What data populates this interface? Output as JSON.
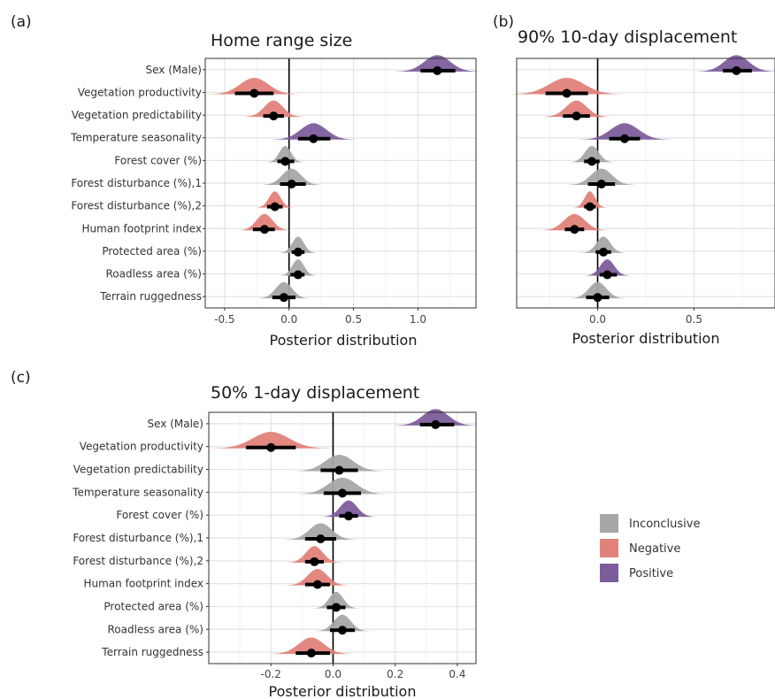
{
  "legend": [
    {
      "label": "Inconclusive",
      "color": "#A6A6A6"
    },
    {
      "label": "Negative",
      "color": "#E0827A"
    },
    {
      "label": "Positive",
      "color": "#7D5C9C"
    }
  ],
  "chart_data": [
    {
      "type": "scatter",
      "panel": "(a)",
      "title": "Home range size",
      "xlabel": "Posterior distribution",
      "xlim": [
        -0.65,
        1.45
      ],
      "xticks": [
        -0.5,
        0.0,
        0.5,
        1.0
      ],
      "xtick_labels": [
        "-0.5",
        "0.0",
        "0.5",
        "1.0"
      ],
      "grid": true,
      "categories": [
        "Sex (Male)",
        "Vegetation productivity",
        "Vegetation predictability",
        "Temperature seasonality",
        "Forest cover (%)",
        "Forest disturbance (%),1",
        "Forest disturbance (%),2",
        "Human footprint index",
        "Protected area (%)",
        "Roadless area (%)",
        "Terrain ruggedness"
      ],
      "estimates": [
        1.15,
        -0.27,
        -0.12,
        0.19,
        -0.03,
        0.02,
        -0.11,
        -0.19,
        0.07,
        0.07,
        -0.04
      ],
      "interval_low": [
        1.02,
        -0.42,
        -0.2,
        0.07,
        -0.09,
        -0.07,
        -0.17,
        -0.28,
        0.02,
        0.01,
        -0.13
      ],
      "interval_high": [
        1.29,
        -0.12,
        -0.04,
        0.32,
        0.04,
        0.13,
        -0.05,
        -0.11,
        0.12,
        0.12,
        0.05
      ],
      "spread": [
        0.22,
        0.24,
        0.16,
        0.22,
        0.1,
        0.16,
        0.1,
        0.14,
        0.1,
        0.1,
        0.14
      ],
      "classes": [
        "Positive",
        "Negative",
        "Negative",
        "Positive",
        "Inconclusive",
        "Inconclusive",
        "Negative",
        "Negative",
        "Inconclusive",
        "Inconclusive",
        "Inconclusive"
      ]
    },
    {
      "type": "scatter",
      "panel": "(b)",
      "title": "90% 10-day displacement",
      "xlabel": "Posterior distribution",
      "xlim": [
        -0.42,
        0.92
      ],
      "xticks": [
        0.0,
        0.5
      ],
      "xtick_labels": [
        "0.0",
        "0.5"
      ],
      "grid": true,
      "categories": [
        "Sex (Male)",
        "Vegetation productivity",
        "Vegetation predictability",
        "Temperature seasonality",
        "Forest cover (%)",
        "Forest disturbance (%),1",
        "Forest disturbance (%),2",
        "Human footprint index",
        "Protected area (%)",
        "Roadless area (%)",
        "Terrain ruggedness"
      ],
      "estimates": [
        0.72,
        -0.16,
        -0.11,
        0.14,
        -0.03,
        0.02,
        -0.04,
        -0.12,
        0.03,
        0.05,
        0.0
      ],
      "interval_low": [
        0.65,
        -0.27,
        -0.18,
        0.06,
        -0.07,
        -0.05,
        -0.07,
        -0.17,
        -0.01,
        0.01,
        -0.06
      ],
      "interval_high": [
        0.8,
        -0.05,
        -0.04,
        0.22,
        0.01,
        0.09,
        -0.01,
        -0.07,
        0.07,
        0.1,
        0.06
      ],
      "spread": [
        0.14,
        0.2,
        0.12,
        0.16,
        0.08,
        0.12,
        0.06,
        0.12,
        0.08,
        0.08,
        0.1
      ],
      "classes": [
        "Positive",
        "Negative",
        "Negative",
        "Positive",
        "Inconclusive",
        "Inconclusive",
        "Negative",
        "Negative",
        "Inconclusive",
        "Positive",
        "Inconclusive"
      ]
    },
    {
      "type": "scatter",
      "panel": "(c)",
      "title": "50% 1-day displacement",
      "xlabel": "Posterior distribution",
      "xlim": [
        -0.4,
        0.46
      ],
      "xticks": [
        -0.2,
        0.0,
        0.2,
        0.4
      ],
      "xtick_labels": [
        "-0.2",
        "0.0",
        "0.2",
        "0.4"
      ],
      "grid": true,
      "categories": [
        "Sex (Male)",
        "Vegetation productivity",
        "Vegetation predictability",
        "Temperature seasonality",
        "Forest cover (%)",
        "Forest disturbance (%),1",
        "Forest disturbance (%),2",
        "Human footprint index",
        "Protected area (%)",
        "Roadless area (%)",
        "Terrain ruggedness"
      ],
      "estimates": [
        0.33,
        -0.2,
        0.02,
        0.03,
        0.05,
        -0.04,
        -0.06,
        -0.05,
        0.01,
        0.03,
        -0.07
      ],
      "interval_low": [
        0.28,
        -0.28,
        -0.04,
        -0.03,
        0.02,
        -0.09,
        -0.09,
        -0.09,
        -0.02,
        -0.01,
        -0.12
      ],
      "interval_high": [
        0.39,
        -0.12,
        0.08,
        0.09,
        0.08,
        0.01,
        -0.03,
        -0.01,
        0.04,
        0.07,
        -0.01
      ],
      "spread": [
        0.09,
        0.13,
        0.1,
        0.1,
        0.06,
        0.08,
        0.06,
        0.07,
        0.05,
        0.06,
        0.09
      ],
      "classes": [
        "Positive",
        "Negative",
        "Inconclusive",
        "Inconclusive",
        "Positive",
        "Inconclusive",
        "Negative",
        "Negative",
        "Inconclusive",
        "Inconclusive",
        "Negative"
      ]
    }
  ]
}
